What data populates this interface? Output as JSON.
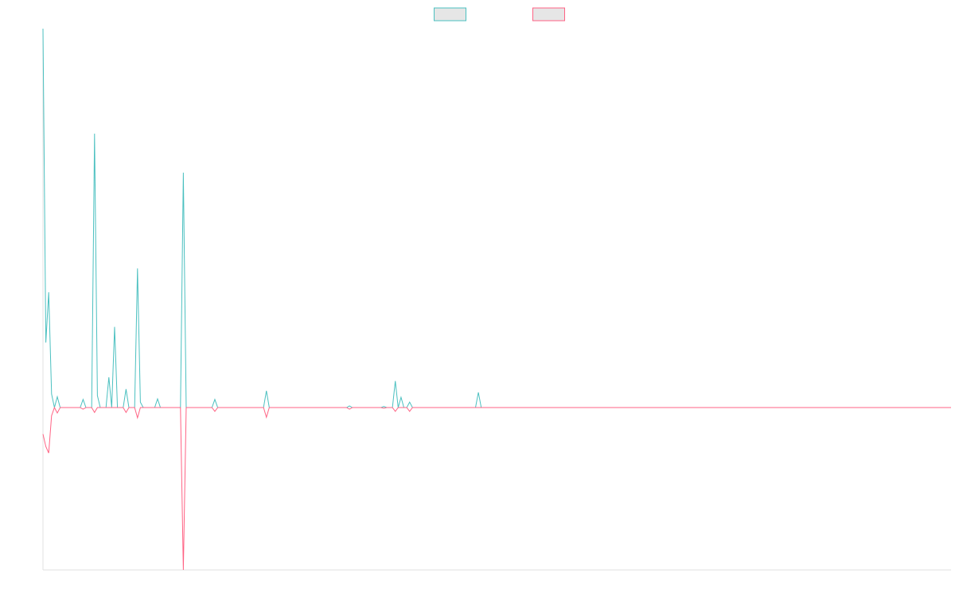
{
  "chart_data": {
    "type": "line",
    "x": [
      0,
      1,
      2,
      3,
      4,
      5,
      6,
      13,
      14,
      15,
      17,
      18,
      19,
      20,
      22,
      23,
      24,
      25,
      26,
      28,
      29,
      30,
      32,
      33,
      34,
      35,
      39,
      40,
      41,
      48,
      49,
      50,
      59,
      60,
      61,
      77,
      78,
      79,
      106,
      107,
      108,
      118,
      119,
      120,
      122,
      123,
      124,
      125,
      126,
      127,
      128,
      129,
      151,
      152,
      153,
      317
    ],
    "series": [
      {
        "color": "#4bc0c0",
        "values": [
          70,
          12,
          21.3,
          2.5,
          0,
          2,
          0,
          0,
          1.5,
          0,
          0,
          50.6,
          2.2,
          0,
          0,
          5.6,
          0,
          14.9,
          0,
          0,
          3.4,
          0,
          0,
          25.7,
          1,
          0,
          0,
          1.6,
          0,
          0,
          43.4,
          0,
          0,
          1.5,
          0,
          0,
          3.1,
          0,
          0,
          0.3,
          0,
          0,
          0.2,
          0,
          0,
          4.9,
          0,
          1.9,
          0,
          0,
          1,
          0,
          0,
          2.8,
          0,
          0
        ]
      },
      {
        "color": "#ff6384",
        "values": [
          -4.9,
          -7.2,
          -8.4,
          -1.5,
          0,
          -1,
          0,
          0,
          -0.3,
          0,
          0,
          -0.9,
          0,
          0,
          0,
          0,
          0,
          0,
          0,
          0,
          -0.9,
          0,
          0,
          -1.9,
          0,
          0,
          0,
          0,
          0,
          0,
          -30,
          0,
          0,
          -0.7,
          0,
          0,
          -1.8,
          0,
          0,
          -0.3,
          0,
          0,
          -0.1,
          0,
          0,
          -0.7,
          0,
          0,
          0,
          0,
          -0.7,
          0,
          0,
          0,
          0,
          0
        ]
      }
    ],
    "xlim": [
      0,
      317
    ],
    "ylim": [
      -30,
      70
    ],
    "legend": "top"
  }
}
